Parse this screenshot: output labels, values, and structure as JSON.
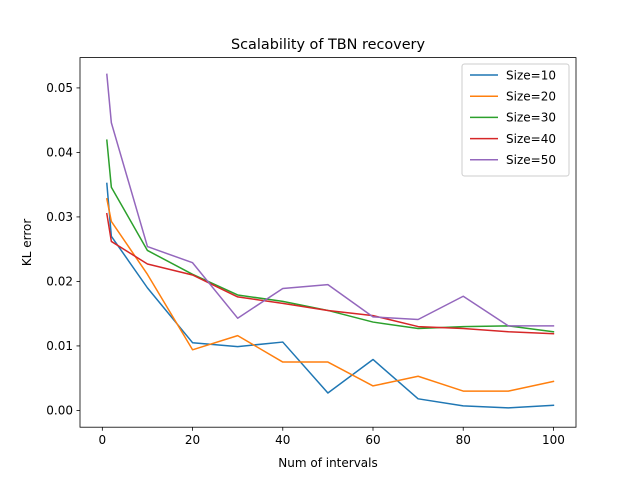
{
  "chart_data": {
    "type": "line",
    "title": "Scalability of TBN recovery",
    "xlabel": "Num of intervals",
    "ylabel": "KL error",
    "xlim": [
      -4.95,
      105
    ],
    "ylim": [
      -0.0026,
      0.0547
    ],
    "xticks": [
      0,
      20,
      40,
      60,
      80,
      100
    ],
    "yticks": [
      0.0,
      0.01,
      0.02,
      0.03,
      0.04,
      0.05
    ],
    "ytick_labels": [
      "0.00",
      "0.01",
      "0.02",
      "0.03",
      "0.04",
      "0.05"
    ],
    "grid": false,
    "legend_position": "top-right",
    "x": [
      1,
      2,
      10,
      20,
      30,
      40,
      50,
      60,
      70,
      80,
      90,
      100
    ],
    "series": [
      {
        "name": "Size=10",
        "color": "#1f77b4",
        "values": [
          0.0352,
          0.027,
          0.019,
          0.0105,
          0.0099,
          0.0106,
          0.0027,
          0.0079,
          0.0018,
          0.0007,
          0.0004,
          0.0008
        ]
      },
      {
        "name": "Size=20",
        "color": "#ff7f0e",
        "values": [
          0.0328,
          0.0293,
          0.0211,
          0.0094,
          0.0116,
          0.0075,
          0.0075,
          0.0038,
          0.0053,
          0.003,
          0.003,
          0.0045
        ]
      },
      {
        "name": "Size=30",
        "color": "#2ca02c",
        "values": [
          0.0419,
          0.0346,
          0.0248,
          0.0211,
          0.0179,
          0.0169,
          0.0155,
          0.0137,
          0.0127,
          0.013,
          0.0131,
          0.0122
        ]
      },
      {
        "name": "Size=40",
        "color": "#d62728",
        "values": [
          0.0305,
          0.0262,
          0.0227,
          0.021,
          0.0176,
          0.0166,
          0.0155,
          0.0147,
          0.013,
          0.0127,
          0.0122,
          0.0119
        ]
      },
      {
        "name": "Size=50",
        "color": "#9467bd",
        "values": [
          0.0521,
          0.0446,
          0.0254,
          0.0229,
          0.0143,
          0.0189,
          0.0195,
          0.0145,
          0.0141,
          0.0177,
          0.0131,
          0.0131
        ]
      }
    ]
  }
}
